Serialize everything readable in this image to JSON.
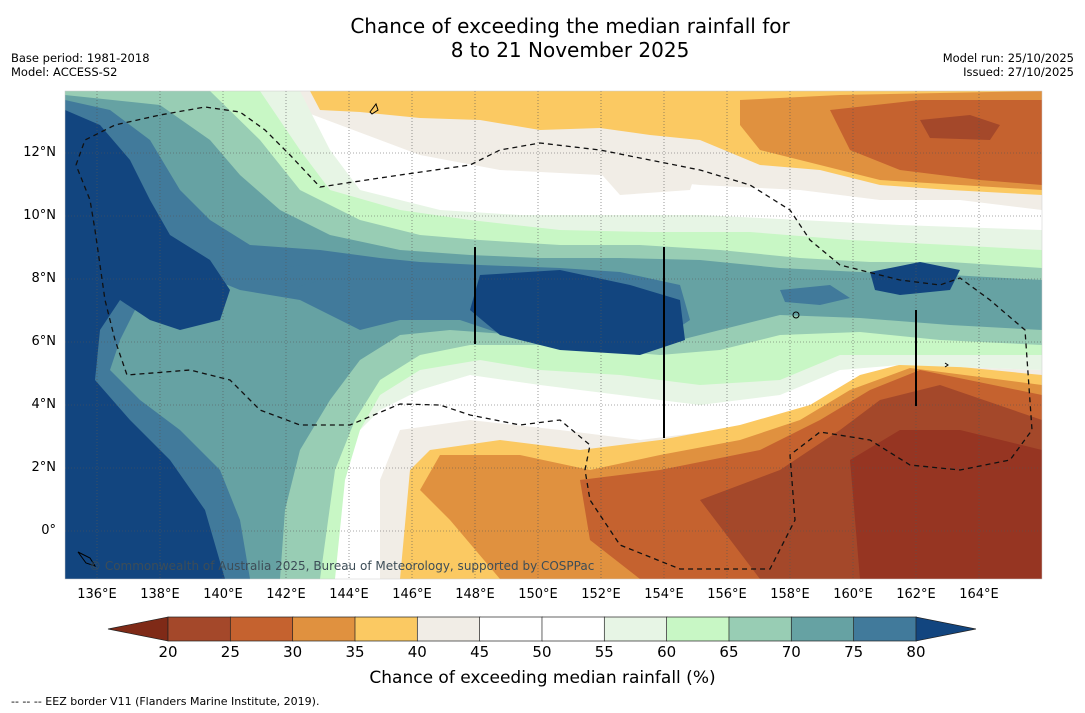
{
  "title_line1": "Chance of exceeding the median rainfall for",
  "title_line2": "8 to 21 November 2025",
  "meta_left": {
    "base_period": "Base period: 1981-2018",
    "model": "Model: ACCESS-S2"
  },
  "meta_right": {
    "model_run": "Model run: 25/10/2025",
    "issued": "Issued: 27/10/2025"
  },
  "lat_labels": [
    "12°N",
    "10°N",
    "8°N",
    "6°N",
    "4°N",
    "2°N",
    "0°"
  ],
  "lon_labels": [
    "136°E",
    "138°E",
    "140°E",
    "142°E",
    "144°E",
    "146°E",
    "148°E",
    "150°E",
    "152°E",
    "154°E",
    "156°E",
    "158°E",
    "160°E",
    "162°E",
    "164°E"
  ],
  "colorbar": {
    "ticks": [
      "20",
      "25",
      "30",
      "35",
      "40",
      "45",
      "50",
      "55",
      "60",
      "65",
      "70",
      "75",
      "80"
    ],
    "low_color": "#7f2a17",
    "high_color": "#12457f",
    "colors": [
      "#a4482a",
      "#c5622f",
      "#e0913f",
      "#fbc962",
      "#f1ede6",
      "#ffffff",
      "#ffffff",
      "#e7f5e5",
      "#c8f7c5",
      "#98cdb4",
      "#66a2a3",
      "#417a9b"
    ],
    "title": "Chance of exceeding median rainfall (%)"
  },
  "credit": "© Commonwealth of Australia 2025, Bureau of Meteorology, supported by COSPPac",
  "footer": "--  --  -- EEZ border V11 (Flanders Marine Institute, 2019)."
}
